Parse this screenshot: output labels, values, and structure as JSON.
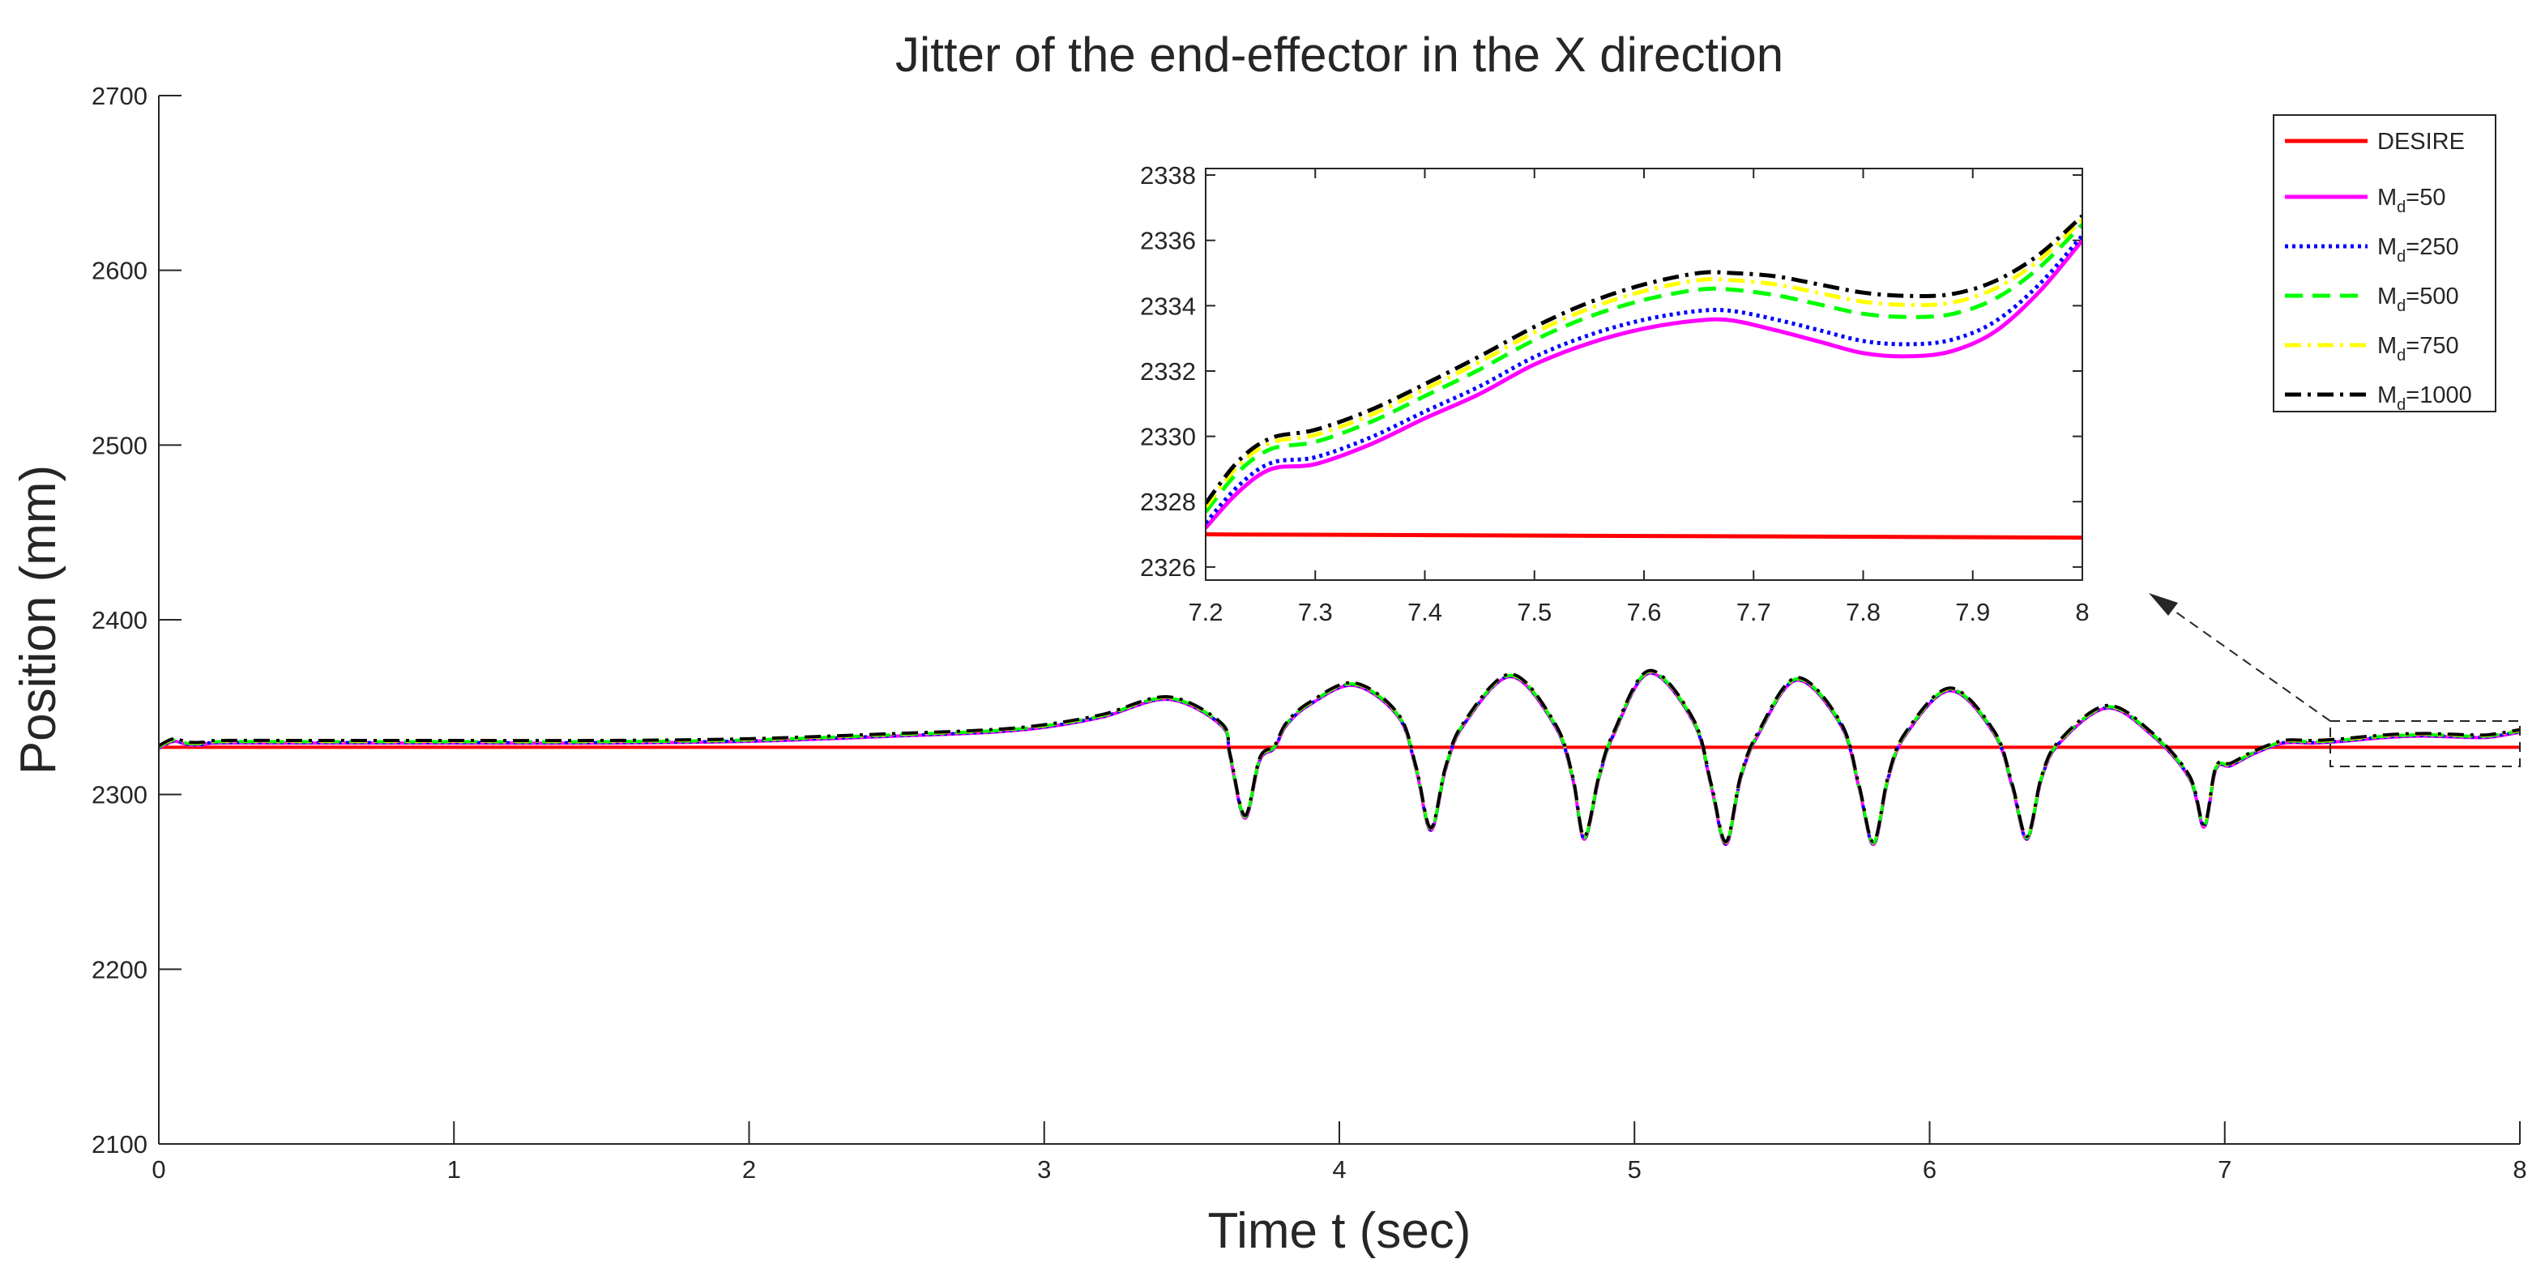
{
  "chart_data": {
    "type": "line",
    "title": "Jitter of the end-effector in the X direction",
    "xlabel": "Time t (sec)",
    "ylabel": "Position (mm)",
    "xlim": [
      0,
      8
    ],
    "ylim": [
      2100,
      2700
    ],
    "xticks": [
      "0",
      "1",
      "2",
      "3",
      "4",
      "5",
      "6",
      "7",
      "8"
    ],
    "yticks": [
      "2100",
      "2200",
      "2300",
      "2400",
      "2500",
      "2600",
      "2700"
    ],
    "grid": false,
    "legend_position": "top-right",
    "series": [
      {
        "name": "DESIRE",
        "label_main": "DESIRE",
        "label_sub": "",
        "label_tail": "",
        "color": "#ff0000",
        "style": "solid",
        "offset": 0
      },
      {
        "name": "M_d=50",
        "label_main": "M",
        "label_sub": "d",
        "label_tail": "=50",
        "color": "#ff00ff",
        "style": "solid",
        "offset": -0.6
      },
      {
        "name": "M_d=250",
        "label_main": "M",
        "label_sub": "d",
        "label_tail": "=250",
        "color": "#0000ff",
        "style": "dotted",
        "offset": -0.3
      },
      {
        "name": "M_d=500",
        "label_main": "M",
        "label_sub": "d",
        "label_tail": "=500",
        "color": "#00ff00",
        "style": "dashed",
        "offset": 0.2
      },
      {
        "name": "M_d=750",
        "label_main": "M",
        "label_sub": "d",
        "label_tail": "=750",
        "color": "#ffff00",
        "style": "dashdot",
        "offset": 0.6
      },
      {
        "name": "M_d=1000",
        "label_main": "M",
        "label_sub": "d",
        "label_tail": "=1000",
        "color": "#000000",
        "style": "dashdot",
        "offset": 0.9
      }
    ],
    "desired_x": [
      0,
      8
    ],
    "desired_y": [
      2327,
      2327
    ],
    "response_x": [
      0,
      0.05,
      0.1,
      0.15,
      0.2,
      0.5,
      1.0,
      1.5,
      2.0,
      2.5,
      2.8,
      3.0,
      3.2,
      3.42,
      3.6,
      3.63,
      3.68,
      3.73,
      3.78,
      3.82,
      3.9,
      4.05,
      4.2,
      4.26,
      4.31,
      4.36,
      4.42,
      4.58,
      4.73,
      4.79,
      4.83,
      4.88,
      4.93,
      5.05,
      5.2,
      5.26,
      5.31,
      5.36,
      5.42,
      5.55,
      5.7,
      5.76,
      5.81,
      5.86,
      5.92,
      6.07,
      6.22,
      6.28,
      6.33,
      6.38,
      6.44,
      6.6,
      6.75,
      6.88,
      6.93,
      6.97,
      7.02,
      7.1,
      7.2,
      7.3,
      7.4,
      7.5,
      7.6,
      7.68,
      7.76,
      7.84,
      7.9,
      8.0
    ],
    "response_y": [
      2327,
      2331,
      2329,
      2329,
      2330,
      2330,
      2330,
      2330,
      2331,
      2334,
      2336,
      2339,
      2345,
      2355,
      2340,
      2322,
      2287,
      2320,
      2327,
      2340,
      2352,
      2363,
      2345,
      2315,
      2280,
      2315,
      2340,
      2368,
      2340,
      2310,
      2275,
      2310,
      2335,
      2370,
      2342,
      2305,
      2272,
      2310,
      2335,
      2366,
      2340,
      2305,
      2272,
      2310,
      2335,
      2360,
      2335,
      2305,
      2275,
      2310,
      2330,
      2350,
      2335,
      2310,
      2282,
      2315,
      2317,
      2324,
      2330,
      2330,
      2331,
      2332.6,
      2333.7,
      2334.0,
      2333.6,
      2333.2,
      2333.4,
      2336.2
    ],
    "inset": {
      "xlim": [
        7.2,
        8
      ],
      "ylim": [
        2325.6,
        2338.2
      ],
      "xticks": [
        "7.2",
        "7.3",
        "7.4",
        "7.5",
        "7.6",
        "7.7",
        "7.8",
        "7.9",
        "8"
      ],
      "yticks": [
        "2326",
        "2328",
        "2330",
        "2332",
        "2334",
        "2336",
        "2338"
      ],
      "desired_y": [
        2327.0,
        2326.9
      ],
      "base_x": [
        7.2,
        7.23,
        7.26,
        7.3,
        7.35,
        7.4,
        7.45,
        7.5,
        7.55,
        7.6,
        7.65,
        7.68,
        7.72,
        7.76,
        7.8,
        7.84,
        7.88,
        7.92,
        7.96,
        8.0
      ],
      "base_y": [
        2327.4,
        2328.6,
        2329.3,
        2329.5,
        2330.1,
        2330.9,
        2331.7,
        2332.6,
        2333.3,
        2333.8,
        2334.1,
        2334.1,
        2333.9,
        2333.6,
        2333.3,
        2333.2,
        2333.3,
        2333.8,
        2334.8,
        2336.2
      ],
      "spread": [
        0.4,
        0.6,
        0.6,
        0.7,
        0.7,
        0.7,
        0.8,
        0.8,
        0.9,
        1.0,
        1.1,
        1.1,
        1.3,
        1.4,
        1.5,
        1.5,
        1.4,
        1.2,
        0.8,
        0.4
      ]
    }
  }
}
